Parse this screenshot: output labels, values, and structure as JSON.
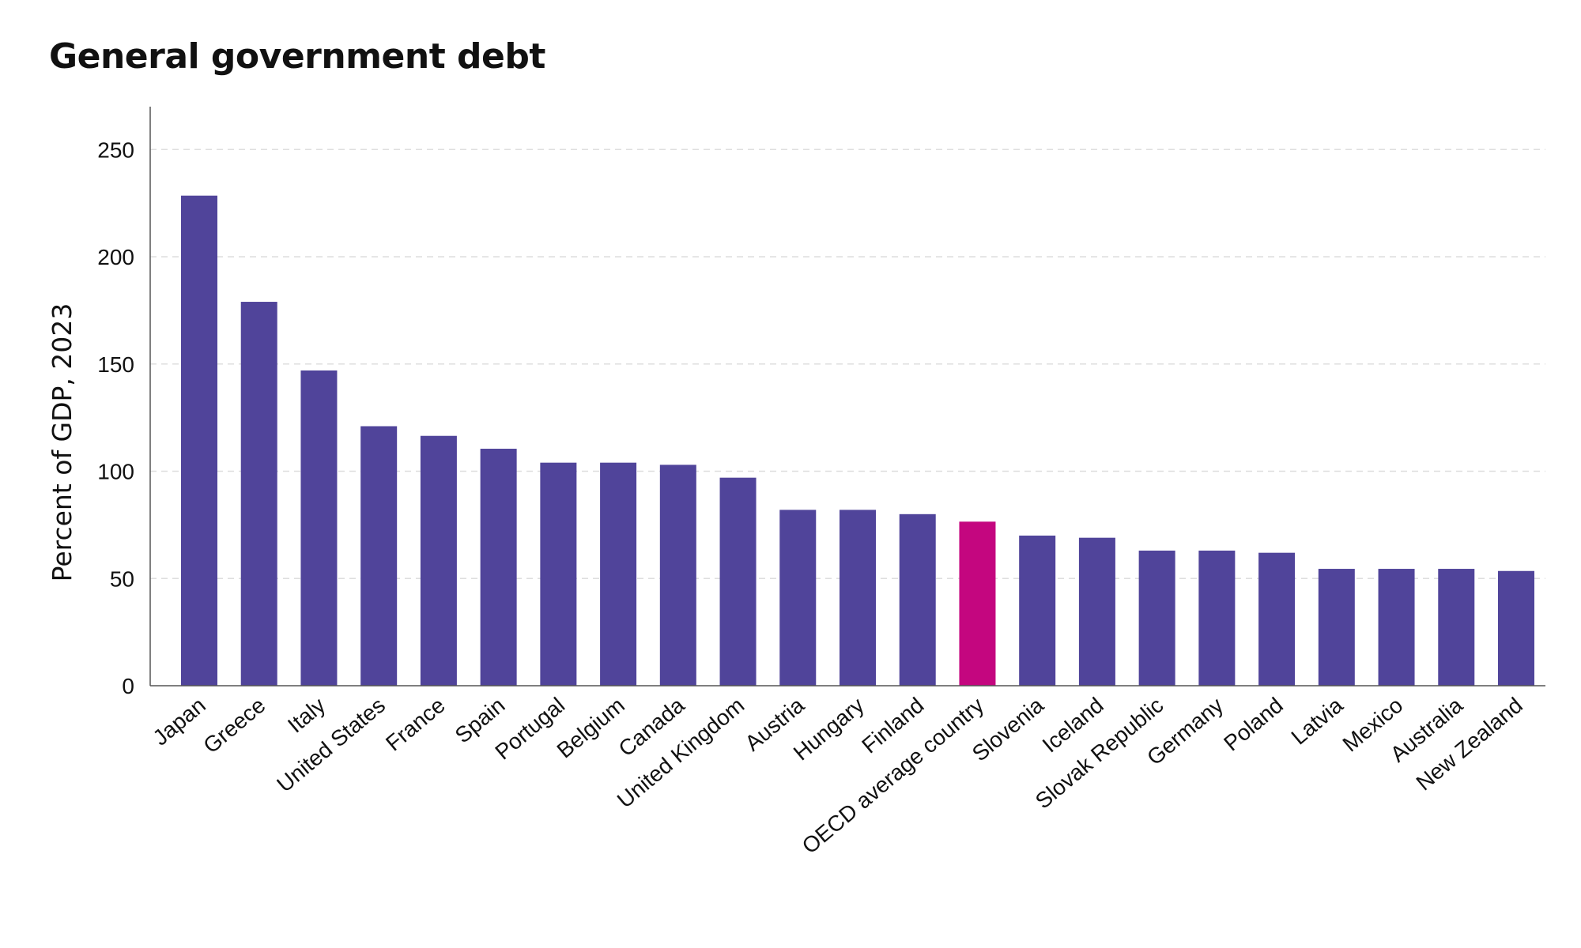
{
  "chart_data": {
    "type": "bar",
    "title": "General government debt",
    "xlabel": "",
    "ylabel": "Percent of GDP, 2023",
    "ylim": [
      0,
      270
    ],
    "yticks": [
      0,
      50,
      100,
      150,
      200,
      250
    ],
    "grid": true,
    "categories": [
      "Japan",
      "Greece",
      "Italy",
      "United States",
      "France",
      "Spain",
      "Portugal",
      "Belgium",
      "Canada",
      "United Kingdom",
      "Austria",
      "Hungary",
      "Finland",
      "OECD average country",
      "Slovenia",
      "Iceland",
      "Slovak Republic",
      "Germany",
      "Poland",
      "Latvia",
      "Mexico",
      "Australia",
      "New Zealand"
    ],
    "values": [
      228.5,
      179,
      147,
      121,
      116.5,
      110.5,
      104,
      104,
      103,
      97,
      82,
      82,
      80,
      76.5,
      70,
      69,
      63,
      63,
      62,
      54.5,
      54.5,
      54.5,
      53.5
    ],
    "highlight": "OECD average country",
    "colors": {
      "bar": "#50449a",
      "highlight": "#c4067f",
      "grid": "#dedede",
      "axis": "#555555"
    }
  }
}
